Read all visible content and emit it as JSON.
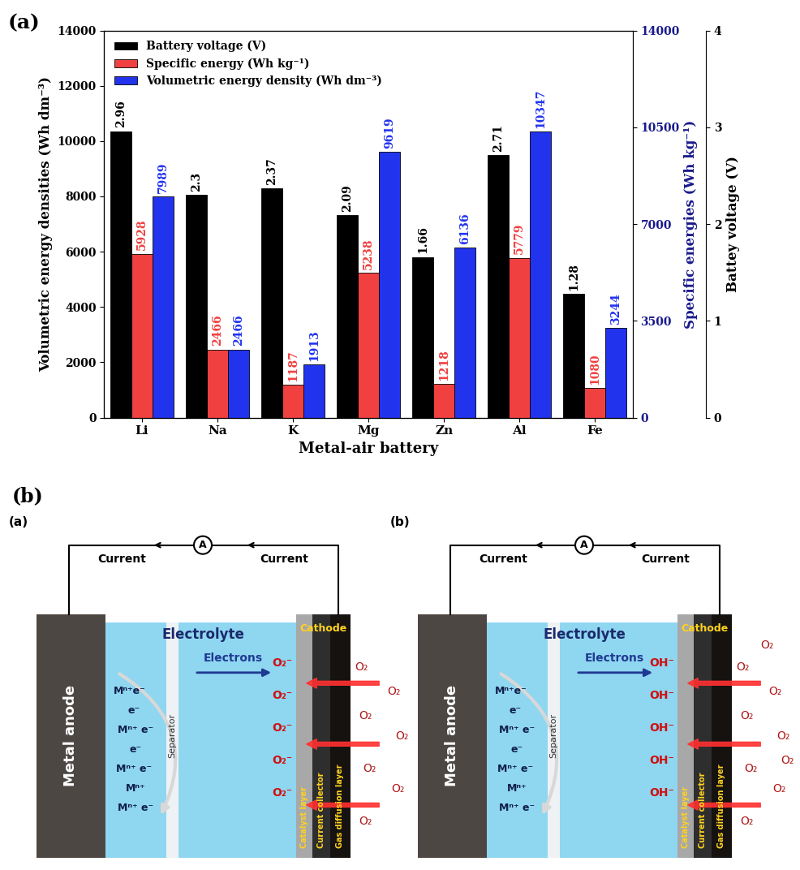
{
  "chart_data": {
    "type": "bar",
    "title": "(a)",
    "categories": [
      "Li",
      "Na",
      "K",
      "Mg",
      "Zn",
      "Al",
      "Fe"
    ],
    "x_label": "Metal-air battery",
    "y_label": "Volumetric energy densities (Wh dm⁻³)",
    "y2_label": "Specific energies (Wh kg⁻¹)",
    "y3_label": "Battey voltage (V)",
    "series": [
      {
        "name": "Battery voltage (V)",
        "color": "#000000",
        "axis": "y3",
        "values": [
          2.96,
          2.3,
          2.37,
          2.09,
          1.66,
          2.71,
          1.28
        ]
      },
      {
        "name": "Specific energy (Wh kg⁻¹)",
        "color": "#f04040",
        "axis": "y2",
        "values": [
          5928,
          2466,
          1187,
          5238,
          1218,
          5779,
          1080
        ]
      },
      {
        "name": "Volumetric energy density (Wh dm⁻³)",
        "color": "#2233ee",
        "values": [
          7989,
          2466,
          1913,
          9619,
          6136,
          10347,
          3244
        ]
      }
    ],
    "ylim": [
      0,
      14000
    ],
    "yticks": [
      0,
      2000,
      4000,
      6000,
      8000,
      10000,
      12000,
      14000
    ],
    "y2lim": [
      0,
      14000
    ],
    "y2ticks": [
      0,
      3500,
      7000,
      10500,
      14000
    ],
    "y3lim": [
      0,
      4
    ],
    "y3ticks": [
      0,
      1,
      2,
      3,
      4
    ],
    "data_labels": true,
    "legend": "upper left"
  },
  "diagram": {
    "label": "(b)",
    "panels": [
      {
        "label": "(a)",
        "current": [
          "Current",
          "Current"
        ],
        "meter": "A",
        "anode": "Metal anode",
        "electrolyte": "Electrolyte",
        "electrons": "Electrons",
        "separator": "Separator",
        "cathode": "Cathode",
        "layers": [
          "Catalyst layer",
          "Current collector",
          "Gas diffusion layer"
        ],
        "anode_species": [
          "Mⁿ⁺e⁻",
          "e⁻",
          "Mⁿ⁺ e⁻",
          "e⁻",
          "Mⁿ⁺ e⁻",
          "Mⁿ⁺",
          "Mⁿ⁺ e⁻"
        ],
        "ions": [
          "O₂⁻",
          "O₂⁻",
          "O₂⁻",
          "O₂⁻",
          "O₂⁻"
        ],
        "gas": [
          "O₂",
          "O₂",
          "O₂",
          "O₂",
          "O₂",
          "O₂",
          "O₂"
        ]
      },
      {
        "label": "(b)",
        "current": [
          "Current",
          "Current"
        ],
        "meter": "A",
        "anode": "Metal anode",
        "electrolyte": "Electrolyte",
        "electrons": "Electrons",
        "separator": "Separator",
        "cathode": "Cathode",
        "layers": [
          "Catalyst layer",
          "Current collector",
          "Gas diffusion layer"
        ],
        "anode_species": [
          "Mⁿ⁺e⁻",
          "e⁻",
          "Mⁿ⁺ e⁻",
          "e⁻",
          "Mⁿ⁺ e⁻",
          "Mⁿ⁺",
          "Mⁿ⁺ e⁻"
        ],
        "ions": [
          "OH⁻",
          "OH⁻",
          "OH⁻",
          "OH⁻",
          "OH⁻"
        ],
        "gas": [
          "O₂",
          "O₂",
          "O₂",
          "O₂",
          "O₂",
          "O₂",
          "O₂",
          "O₂",
          "O₂"
        ]
      }
    ]
  }
}
